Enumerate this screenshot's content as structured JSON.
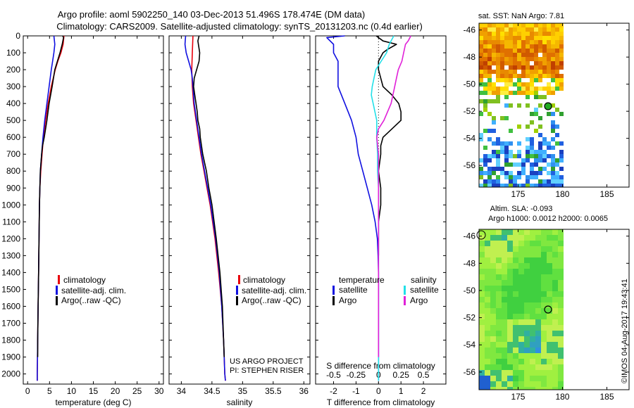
{
  "header": {
    "title_line1": "Argo profile: aoml 5902250_140 03-Dec-2013 51.496S 178.474E (DM data)",
    "title_line2": "Climatology: CARS2009. Satellite-adjusted climatology: synTS_20131203.nc (0.4d earlier)"
  },
  "colors": {
    "climatology": "#e8000b",
    "satellite": "#1010e0",
    "argo": "#000000",
    "sat_salinity": "#22e0e8",
    "argo_salinity": "#e020d8"
  },
  "depth_ticks": [
    "0",
    "100",
    "200",
    "300",
    "400",
    "500",
    "600",
    "700",
    "800",
    "900",
    "1000",
    "1100",
    "1200",
    "1300",
    "1400",
    "1500",
    "1600",
    "1700",
    "1800",
    "1900",
    "2000"
  ],
  "legends": {
    "climatology": "climatology",
    "satellite_adj": "satellite-adj. clim.",
    "argo_raw": "Argo(..raw -QC)",
    "temperature": "temperature",
    "salinity": "salinity",
    "satellite": "satellite",
    "argo": "Argo"
  },
  "credits": {
    "line1": "US ARGO PROJECT",
    "line2": "PI: STEPHEN RISER"
  },
  "stamp": "©IMOS 04-Aug-2017 19:43:41",
  "maps": {
    "sst_title": "sat. SST: NaN Argo: 7.81",
    "sla_title1": "Altim. SLA: -0.093",
    "sla_title2": "Argo h1000: 0.0012 h2000: 0.0065",
    "lat_ticks": [
      "-46",
      "-48",
      "-50",
      "-52",
      "-54",
      "-56"
    ],
    "lon_ticks": [
      "175",
      "180",
      "185"
    ]
  },
  "chart_data": [
    {
      "type": "line",
      "panel": "temperature",
      "xlabel": "temperature (deg C)",
      "xlim": [
        -1,
        31
      ],
      "x_ticks": [
        "0",
        "5",
        "10",
        "15",
        "20",
        "25",
        "30"
      ],
      "ylim": [
        2060,
        0
      ],
      "series": [
        {
          "name": "climatology",
          "depth": [
            0,
            50,
            100,
            150,
            200,
            300,
            400,
            500,
            600,
            700,
            800,
            900,
            1000,
            1200,
            1400,
            1600,
            1800,
            2000,
            2040
          ],
          "values": [
            8.3,
            8.1,
            7.6,
            6.9,
            6.3,
            5.4,
            4.7,
            4.1,
            3.6,
            3.3,
            3.0,
            2.8,
            2.7,
            2.6,
            2.5,
            2.4,
            2.3,
            2.2,
            2.2
          ]
        },
        {
          "name": "satellite-adj. clim.",
          "depth": [
            0,
            50,
            100,
            150,
            200,
            300,
            400,
            500,
            600,
            700,
            800,
            900,
            1000,
            1200,
            1400,
            1600,
            1800,
            2000,
            2040
          ],
          "values": [
            6.0,
            6.2,
            6.0,
            5.7,
            5.4,
            4.9,
            4.4,
            3.9,
            3.5,
            3.2,
            2.9,
            2.8,
            2.7,
            2.6,
            2.5,
            2.4,
            2.3,
            2.2,
            2.2
          ]
        },
        {
          "name": "Argo(..raw -QC)",
          "depth": [
            0,
            10,
            50,
            100,
            150,
            200,
            300,
            400,
            500,
            600,
            650,
            700,
            800,
            900,
            1000,
            1200,
            1400,
            1600,
            1800,
            1900
          ],
          "values": [
            8.0,
            8.2,
            7.9,
            7.4,
            6.8,
            6.2,
            5.6,
            4.9,
            4.4,
            3.8,
            3.4,
            3.2,
            2.9,
            2.8,
            2.7,
            2.6,
            2.5,
            2.4,
            2.3,
            2.3
          ]
        }
      ]
    },
    {
      "type": "line",
      "panel": "salinity",
      "xlabel": "salinity",
      "xlim": [
        33.8,
        36.1
      ],
      "x_ticks": [
        "34",
        "34.5",
        "35",
        "35.5",
        "36"
      ],
      "ylim": [
        2060,
        0
      ],
      "series": [
        {
          "name": "climatology",
          "depth": [
            0,
            100,
            200,
            300,
            400,
            500,
            600,
            700,
            800,
            900,
            1000,
            1200,
            1400,
            1600,
            1800,
            2000,
            2040
          ],
          "values": [
            34.19,
            34.18,
            34.17,
            34.18,
            34.2,
            34.24,
            34.28,
            34.32,
            34.37,
            34.42,
            34.47,
            34.55,
            34.61,
            34.66,
            34.69,
            34.71,
            34.72
          ]
        },
        {
          "name": "satellite-adj. clim.",
          "depth": [
            0,
            50,
            100,
            150,
            200,
            250,
            300,
            400,
            500,
            600,
            700,
            800,
            900,
            1000,
            1200,
            1400,
            1600,
            1800,
            2000,
            2040
          ],
          "values": [
            34.07,
            34.06,
            34.08,
            34.12,
            34.16,
            34.18,
            34.19,
            34.21,
            34.25,
            34.29,
            34.33,
            34.38,
            34.43,
            34.48,
            34.56,
            34.62,
            34.66,
            34.69,
            34.71,
            34.72
          ]
        },
        {
          "name": "Argo(..raw -QC)",
          "depth": [
            0,
            30,
            100,
            150,
            200,
            250,
            300,
            350,
            400,
            450,
            500,
            550,
            600,
            700,
            800,
            900,
            1000,
            1200,
            1400,
            1600,
            1800,
            1900
          ],
          "values": [
            34.29,
            34.27,
            34.3,
            34.29,
            34.25,
            34.21,
            34.2,
            34.22,
            34.24,
            34.26,
            34.27,
            34.3,
            34.31,
            34.35,
            34.41,
            34.45,
            34.5,
            34.57,
            34.63,
            34.67,
            34.69,
            34.7
          ]
        }
      ]
    },
    {
      "type": "line",
      "panel": "differences",
      "xlabel": "T difference from climatology",
      "xlabel2": "S difference from climatology",
      "xlim": [
        -2.8,
        3.0
      ],
      "x_ticks": [
        "-2",
        "-1",
        "0",
        "1",
        "2"
      ],
      "x2_ticks": [
        "-0.5",
        "-0.25",
        "0",
        "0.25",
        "0.5"
      ],
      "ylim": [
        2060,
        0
      ],
      "series": [
        {
          "name": "temperature satellite",
          "depth": [
            0,
            10,
            50,
            100,
            150,
            200,
            300,
            400,
            500,
            600,
            700,
            800,
            900,
            1000,
            1100,
            1200,
            1300,
            1400,
            1600,
            1800,
            2000,
            2040
          ],
          "values": [
            -1.5,
            -2.3,
            -2.0,
            -2.0,
            -1.8,
            -1.8,
            -1.8,
            -1.5,
            -1.2,
            -1.0,
            -0.9,
            -0.7,
            -0.5,
            -0.3,
            -0.15,
            -0.05,
            -0.02,
            0.0,
            0.0,
            0.0,
            0.0,
            0.0
          ]
        },
        {
          "name": "temperature Argo",
          "depth": [
            0,
            30,
            50,
            80,
            100,
            150,
            200,
            300,
            350,
            400,
            450,
            500,
            550,
            600,
            650,
            700,
            800,
            900,
            1000,
            1100,
            1200,
            1300
          ],
          "values": [
            -0.1,
            0.2,
            0.8,
            0.4,
            0.2,
            0.0,
            0.0,
            0.2,
            0.6,
            0.9,
            1.0,
            1.0,
            0.6,
            0.2,
            0.1,
            0.1,
            0.0,
            0.1,
            0.1,
            0.0,
            0.0,
            0.0
          ]
        },
        {
          "name": "salinity satellite",
          "depth": [
            0,
            50,
            100,
            150,
            200,
            250,
            300,
            350,
            400,
            500,
            600,
            700,
            800,
            900,
            1000,
            1200,
            1400,
            1600,
            1800,
            2000,
            2040
          ],
          "values": [
            0.17,
            0.12,
            0.09,
            0.03,
            -0.03,
            -0.05,
            -0.07,
            -0.08,
            -0.06,
            -0.02,
            -0.02,
            -0.01,
            -0.01,
            0.0,
            0.0,
            0.0,
            0.0,
            0.0,
            0.0,
            0.0,
            0.0
          ]
        },
        {
          "name": "salinity Argo",
          "depth": [
            0,
            30,
            50,
            100,
            150,
            200,
            250,
            300,
            400,
            500,
            550,
            600,
            700,
            800,
            900,
            1000,
            1200,
            1400,
            1600,
            1800,
            1900
          ],
          "values": [
            0.36,
            0.33,
            0.3,
            0.28,
            0.26,
            0.22,
            0.2,
            0.18,
            0.14,
            0.06,
            0.0,
            -0.02,
            0.0,
            0.0,
            0.0,
            0.0,
            0.0,
            0.0,
            0.0,
            0.0,
            0.0
          ]
        }
      ]
    }
  ]
}
